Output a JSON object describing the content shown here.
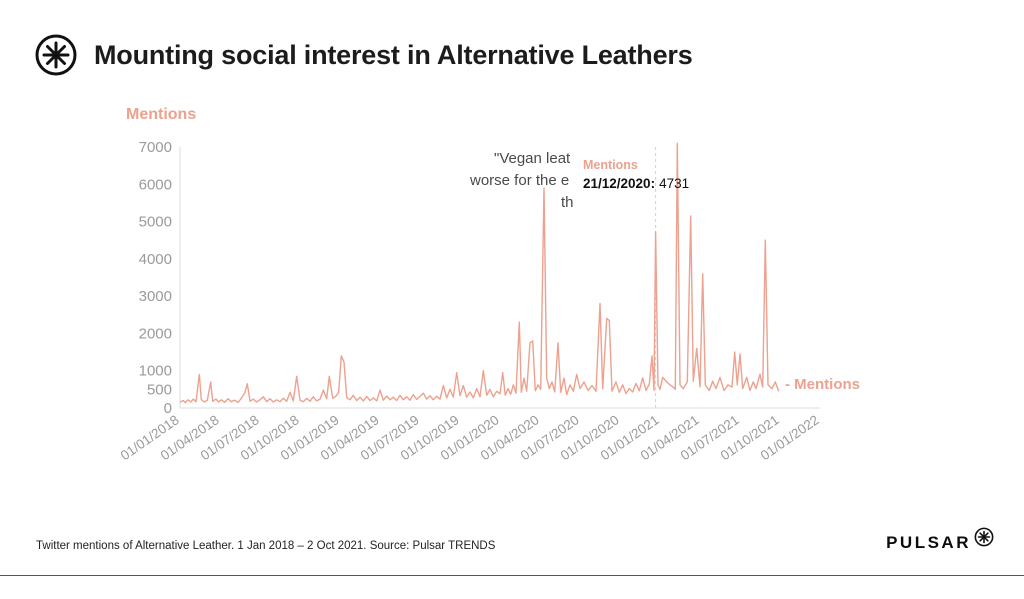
{
  "header": {
    "title": "Mounting social interest in Alternative Leathers",
    "logo_icon": "pulsar-asterisk-circle"
  },
  "colors": {
    "accent": "#EDA18F",
    "tick_text": "#9a9a9a",
    "axis_line": "#dcdcdc"
  },
  "chart_data": {
    "type": "line",
    "title": "Mounting social interest in Alternative Leathers",
    "xlabel": "",
    "ylabel": "Mentions",
    "legend": "- Mentions",
    "grid": false,
    "ylim": [
      0,
      7000
    ],
    "x_range_months": 48,
    "y_ticks": [
      0,
      500,
      1000,
      2000,
      3000,
      4000,
      5000,
      6000,
      7000
    ],
    "x_tick_labels": [
      "01/01/2018",
      "01/04/2018",
      "01/07/2018",
      "01/10/2018",
      "01/01/2019",
      "01/04/2019",
      "01/07/2019",
      "01/10/2019",
      "01/01/2020",
      "01/04/2020",
      "01/07/2020",
      "01/10/2020",
      "01/01/2021",
      "01/04/2021",
      "01/07/2021",
      "01/10/2021",
      "01/01/2022"
    ],
    "annotation_lines": [
      "\"Vegan leat",
      "worse for the e",
      "th"
    ],
    "tooltip": {
      "series_label": "Mentions",
      "date_label": "21/12/2020:",
      "value": 4731,
      "x_month": 35.67
    },
    "series": [
      {
        "name": "Mentions",
        "color": "#EDA18F",
        "points": [
          [
            0,
            160
          ],
          [
            0.25,
            200
          ],
          [
            0.4,
            140
          ],
          [
            0.6,
            220
          ],
          [
            0.8,
            160
          ],
          [
            1.0,
            240
          ],
          [
            1.2,
            170
          ],
          [
            1.45,
            900
          ],
          [
            1.6,
            230
          ],
          [
            1.8,
            160
          ],
          [
            2.05,
            210
          ],
          [
            2.3,
            700
          ],
          [
            2.45,
            180
          ],
          [
            2.7,
            240
          ],
          [
            2.9,
            160
          ],
          [
            3.1,
            220
          ],
          [
            3.35,
            150
          ],
          [
            3.6,
            250
          ],
          [
            3.85,
            170
          ],
          [
            4.1,
            210
          ],
          [
            4.35,
            150
          ],
          [
            4.6,
            260
          ],
          [
            4.85,
            400
          ],
          [
            5.05,
            650
          ],
          [
            5.25,
            180
          ],
          [
            5.5,
            240
          ],
          [
            5.75,
            160
          ],
          [
            6.0,
            220
          ],
          [
            6.25,
            300
          ],
          [
            6.5,
            170
          ],
          [
            6.75,
            250
          ],
          [
            7.0,
            160
          ],
          [
            7.25,
            220
          ],
          [
            7.5,
            170
          ],
          [
            7.75,
            260
          ],
          [
            8.0,
            180
          ],
          [
            8.25,
            420
          ],
          [
            8.5,
            190
          ],
          [
            8.75,
            850
          ],
          [
            9.0,
            210
          ],
          [
            9.25,
            170
          ],
          [
            9.5,
            260
          ],
          [
            9.75,
            180
          ],
          [
            10.0,
            300
          ],
          [
            10.25,
            190
          ],
          [
            10.5,
            240
          ],
          [
            10.75,
            480
          ],
          [
            11.0,
            250
          ],
          [
            11.2,
            850
          ],
          [
            11.45,
            260
          ],
          [
            11.7,
            320
          ],
          [
            11.9,
            420
          ],
          [
            12.1,
            1400
          ],
          [
            12.3,
            1230
          ],
          [
            12.5,
            280
          ],
          [
            12.75,
            220
          ],
          [
            13.0,
            340
          ],
          [
            13.25,
            200
          ],
          [
            13.5,
            290
          ],
          [
            13.75,
            190
          ],
          [
            14.0,
            310
          ],
          [
            14.25,
            200
          ],
          [
            14.5,
            270
          ],
          [
            14.75,
            190
          ],
          [
            15.0,
            480
          ],
          [
            15.25,
            210
          ],
          [
            15.5,
            320
          ],
          [
            15.75,
            220
          ],
          [
            16.0,
            290
          ],
          [
            16.25,
            200
          ],
          [
            16.5,
            340
          ],
          [
            16.75,
            220
          ],
          [
            17.0,
            300
          ],
          [
            17.25,
            210
          ],
          [
            17.5,
            360
          ],
          [
            17.75,
            230
          ],
          [
            18.0,
            310
          ],
          [
            18.25,
            400
          ],
          [
            18.5,
            240
          ],
          [
            18.75,
            330
          ],
          [
            19.0,
            220
          ],
          [
            19.25,
            310
          ],
          [
            19.5,
            240
          ],
          [
            19.75,
            600
          ],
          [
            20.0,
            270
          ],
          [
            20.25,
            500
          ],
          [
            20.5,
            290
          ],
          [
            20.75,
            950
          ],
          [
            21.0,
            330
          ],
          [
            21.25,
            600
          ],
          [
            21.5,
            290
          ],
          [
            21.75,
            430
          ],
          [
            22.0,
            270
          ],
          [
            22.25,
            520
          ],
          [
            22.5,
            300
          ],
          [
            22.75,
            1000
          ],
          [
            23.0,
            340
          ],
          [
            23.25,
            500
          ],
          [
            23.5,
            300
          ],
          [
            23.75,
            450
          ],
          [
            24.0,
            380
          ],
          [
            24.2,
            950
          ],
          [
            24.4,
            340
          ],
          [
            24.6,
            520
          ],
          [
            24.8,
            370
          ],
          [
            25.0,
            620
          ],
          [
            25.2,
            400
          ],
          [
            25.45,
            2300
          ],
          [
            25.6,
            420
          ],
          [
            25.8,
            800
          ],
          [
            26.0,
            450
          ],
          [
            26.25,
            1750
          ],
          [
            26.45,
            1800
          ],
          [
            26.65,
            460
          ],
          [
            26.85,
            620
          ],
          [
            27.05,
            500
          ],
          [
            27.3,
            5900
          ],
          [
            27.5,
            800
          ],
          [
            27.7,
            520
          ],
          [
            27.9,
            700
          ],
          [
            28.1,
            430
          ],
          [
            28.35,
            1750
          ],
          [
            28.55,
            420
          ],
          [
            28.8,
            800
          ],
          [
            29.0,
            360
          ],
          [
            29.25,
            620
          ],
          [
            29.5,
            450
          ],
          [
            29.75,
            900
          ],
          [
            30.0,
            520
          ],
          [
            30.3,
            700
          ],
          [
            30.6,
            470
          ],
          [
            30.9,
            600
          ],
          [
            31.2,
            450
          ],
          [
            31.5,
            2800
          ],
          [
            31.7,
            520
          ],
          [
            32.0,
            2400
          ],
          [
            32.2,
            2350
          ],
          [
            32.4,
            450
          ],
          [
            32.7,
            700
          ],
          [
            32.95,
            420
          ],
          [
            33.2,
            620
          ],
          [
            33.45,
            390
          ],
          [
            33.7,
            520
          ],
          [
            33.95,
            430
          ],
          [
            34.2,
            660
          ],
          [
            34.45,
            460
          ],
          [
            34.7,
            810
          ],
          [
            34.95,
            470
          ],
          [
            35.2,
            640
          ],
          [
            35.4,
            1400
          ],
          [
            35.55,
            470
          ],
          [
            35.67,
            4731
          ],
          [
            35.85,
            620
          ],
          [
            36.0,
            500
          ],
          [
            36.2,
            820
          ],
          [
            36.5,
            700
          ],
          [
            36.75,
            620
          ],
          [
            37.0,
            560
          ],
          [
            37.15,
            500
          ],
          [
            37.3,
            7100
          ],
          [
            37.5,
            620
          ],
          [
            37.75,
            520
          ],
          [
            38.05,
            700
          ],
          [
            38.3,
            5150
          ],
          [
            38.5,
            720
          ],
          [
            38.75,
            1600
          ],
          [
            39.0,
            560
          ],
          [
            39.2,
            3600
          ],
          [
            39.4,
            620
          ],
          [
            39.7,
            470
          ],
          [
            39.95,
            720
          ],
          [
            40.2,
            520
          ],
          [
            40.5,
            820
          ],
          [
            40.8,
            470
          ],
          [
            41.1,
            620
          ],
          [
            41.4,
            560
          ],
          [
            41.6,
            1500
          ],
          [
            41.8,
            620
          ],
          [
            42.0,
            1450
          ],
          [
            42.2,
            520
          ],
          [
            42.5,
            820
          ],
          [
            42.75,
            470
          ],
          [
            43.0,
            700
          ],
          [
            43.2,
            520
          ],
          [
            43.5,
            900
          ],
          [
            43.7,
            560
          ],
          [
            43.9,
            4500
          ],
          [
            44.1,
            620
          ],
          [
            44.4,
            520
          ],
          [
            44.65,
            700
          ],
          [
            44.9,
            450
          ]
        ]
      }
    ]
  },
  "footer": {
    "caption": "Twitter mentions of Alternative Leather. 1 Jan 2018 – 2 Oct 2021. Source: Pulsar TRENDS",
    "brand": "PULSAR",
    "brand_icon": "pulsar-asterisk-circle"
  }
}
